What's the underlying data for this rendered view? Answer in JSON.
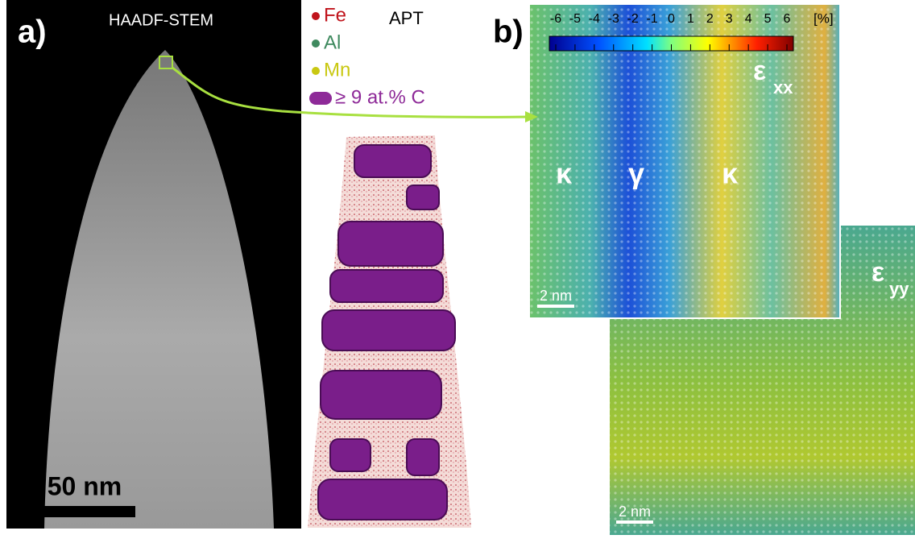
{
  "panel_a": {
    "label": "a)",
    "stem_title": "HAADF-STEM",
    "scale_bar": "50 nm",
    "apt_title": "APT",
    "legend": [
      {
        "name": "Fe",
        "color": "#c0141c"
      },
      {
        "name": "Al",
        "color": "#3f8a5f"
      },
      {
        "name": "Mn",
        "color": "#c9c812"
      },
      {
        "name": "≥ 9 at.% C",
        "color": "#8e2a98"
      }
    ]
  },
  "panel_b": {
    "label": "b)",
    "colorbar": {
      "ticks": [
        -6,
        -5,
        -4,
        -3,
        -2,
        -1,
        0,
        1,
        2,
        3,
        4,
        5,
        6
      ],
      "unit": "[%]"
    },
    "exx": {
      "symbol": "ε",
      "subscript": "xx",
      "phases": [
        "κ",
        "γ",
        "κ"
      ],
      "scale_bar": "2 nm"
    },
    "eyy": {
      "symbol": "ε",
      "subscript": "yy",
      "scale_bar": "2 nm"
    }
  }
}
